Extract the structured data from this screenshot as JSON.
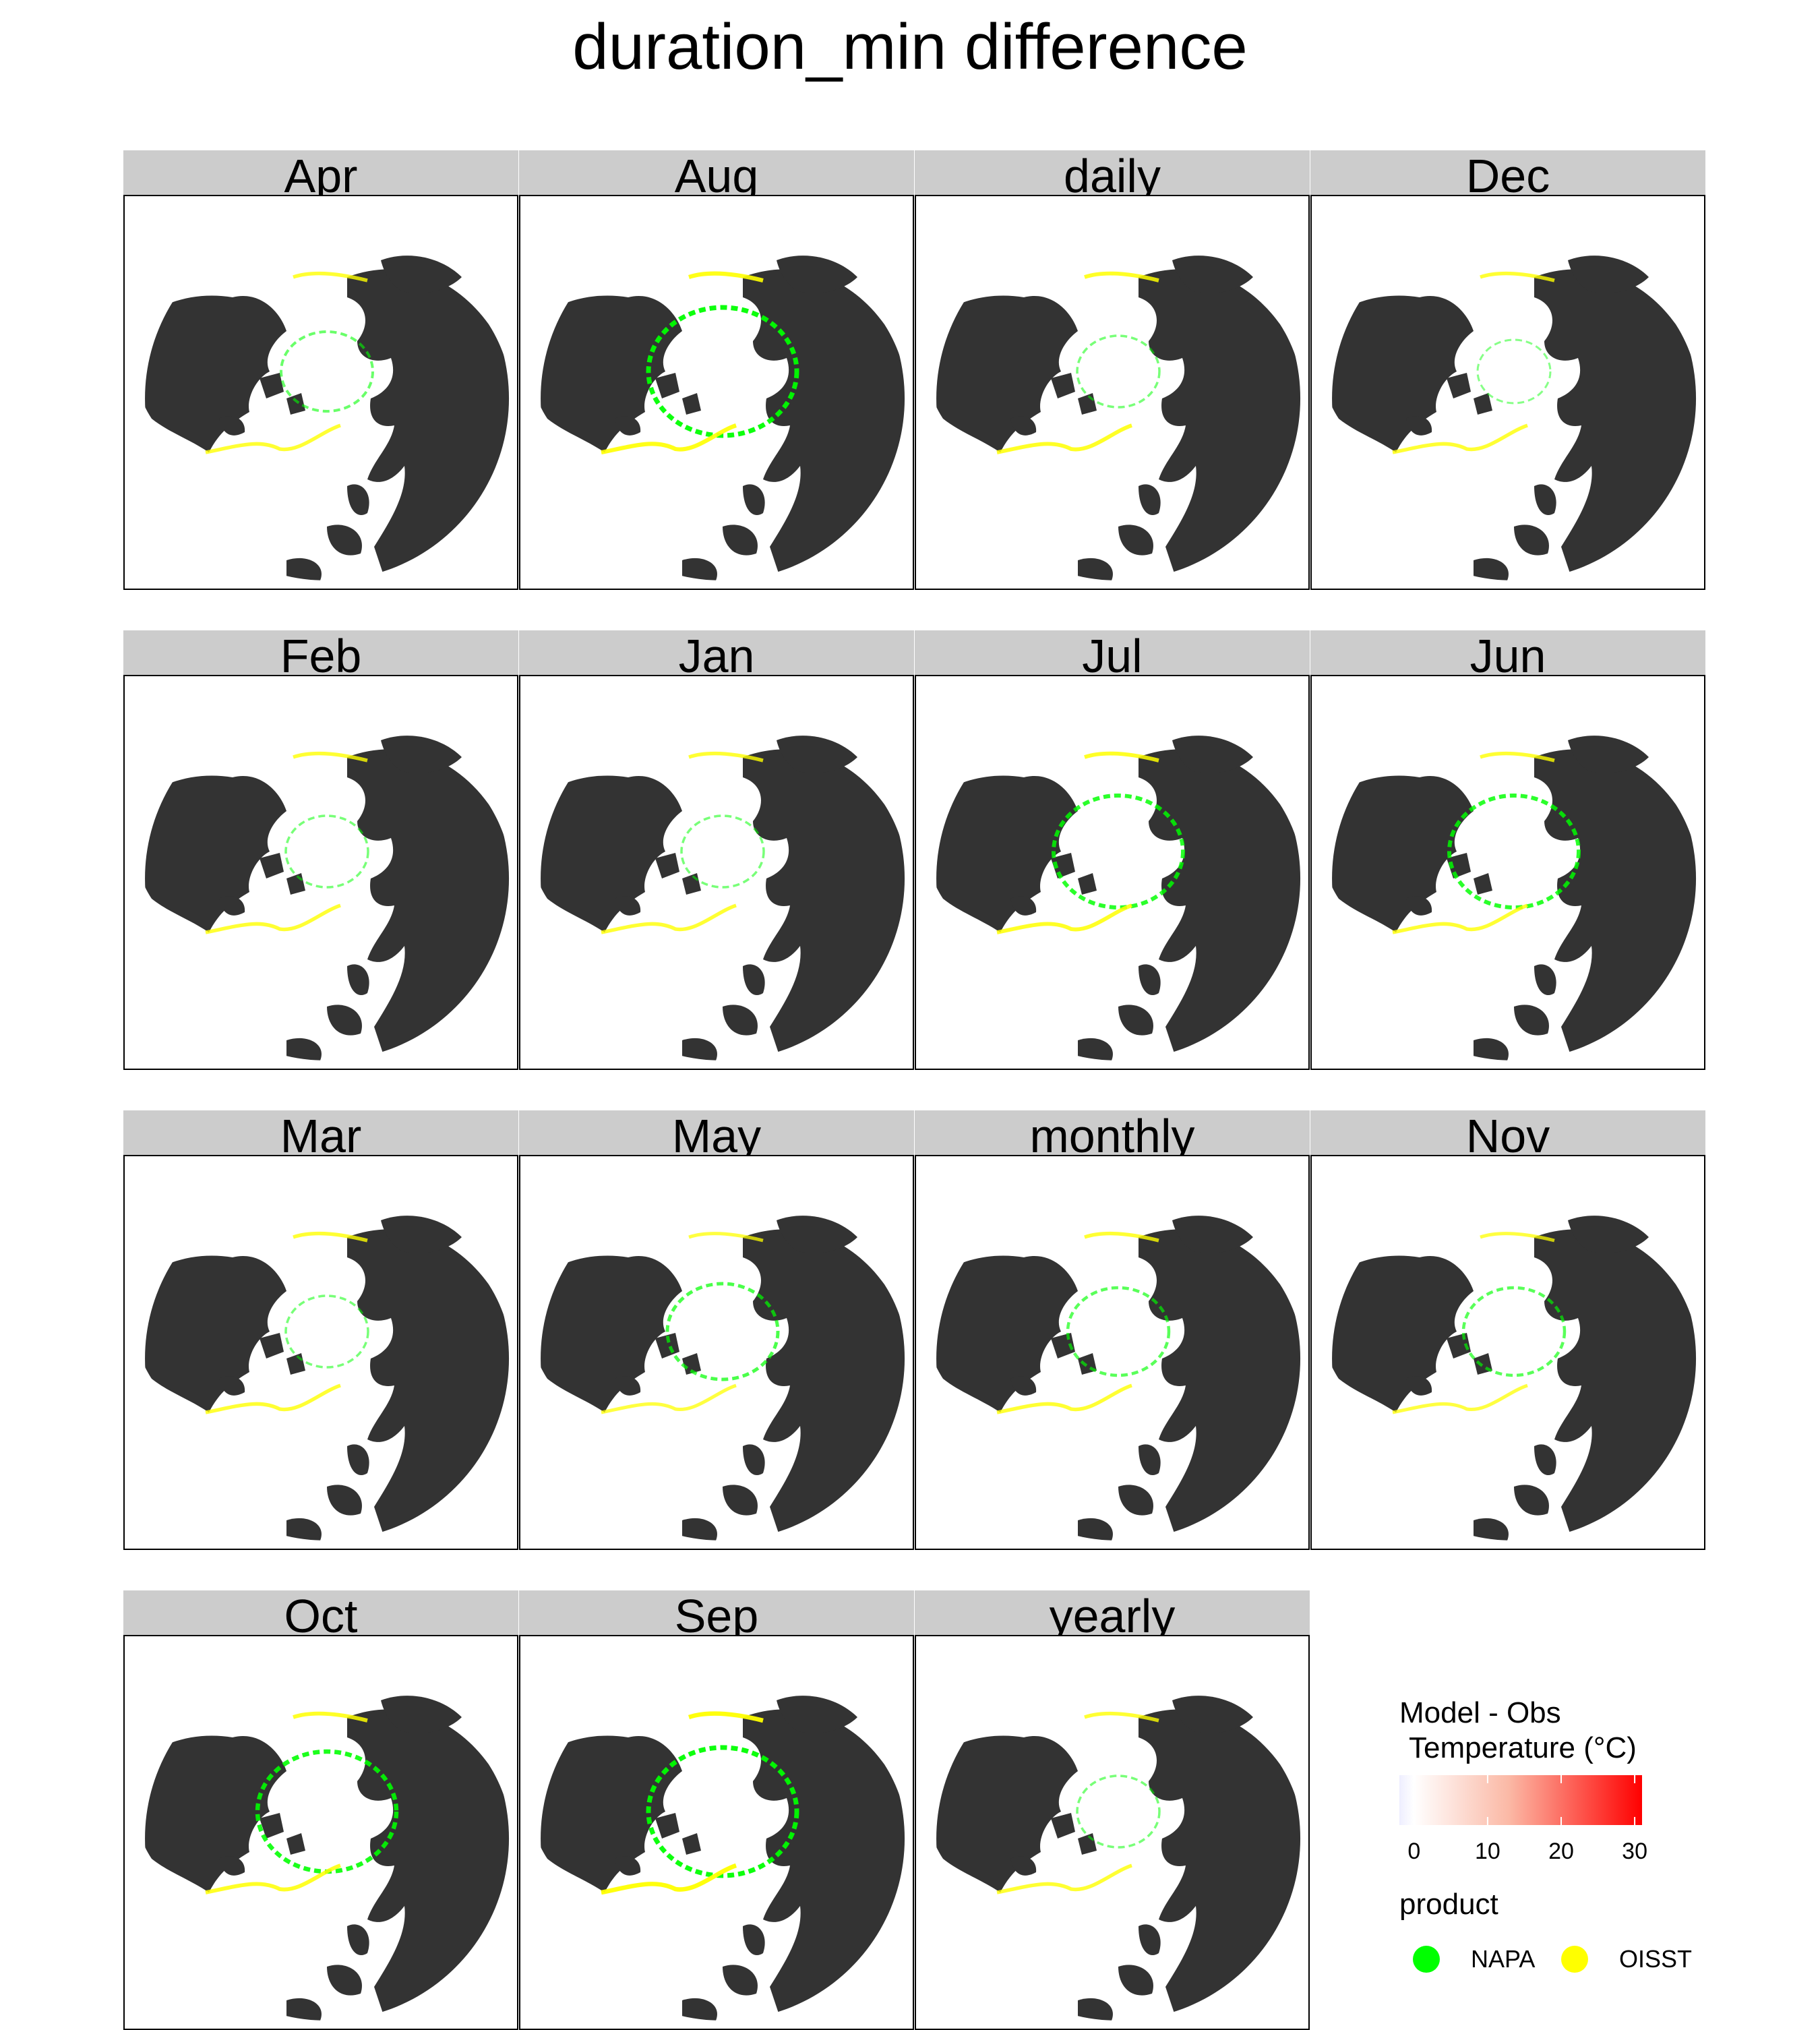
{
  "title": "duration_min difference",
  "panels": [
    {
      "label": "Apr",
      "napa": 0.4,
      "oisst": 0.6
    },
    {
      "label": "Aug",
      "napa": 1.0,
      "oisst": 0.8
    },
    {
      "label": "daily",
      "napa": 0.3,
      "oisst": 0.7
    },
    {
      "label": "Dec",
      "napa": 0.2,
      "oisst": 0.6
    },
    {
      "label": "Feb",
      "napa": 0.3,
      "oisst": 0.6
    },
    {
      "label": "Jan",
      "napa": 0.3,
      "oisst": 0.6
    },
    {
      "label": "Jul",
      "napa": 0.8,
      "oisst": 0.7
    },
    {
      "label": "Jun",
      "napa": 0.8,
      "oisst": 0.6
    },
    {
      "label": "Mar",
      "napa": 0.3,
      "oisst": 0.6
    },
    {
      "label": "May",
      "napa": 0.6,
      "oisst": 0.5
    },
    {
      "label": "monthly",
      "napa": 0.5,
      "oisst": 0.6
    },
    {
      "label": "Nov",
      "napa": 0.5,
      "oisst": 0.5
    },
    {
      "label": "Oct",
      "napa": 0.9,
      "oisst": 0.7
    },
    {
      "label": "Sep",
      "napa": 1.0,
      "oisst": 0.9
    },
    {
      "label": "yearly",
      "napa": 0.3,
      "oisst": 0.6
    }
  ],
  "legend": {
    "title_line1": "Model - Obs",
    "title_line2": "Temperature (°C)",
    "colorbar_ticks": [
      "0",
      "10",
      "20",
      "30"
    ],
    "colorbar_min": -2,
    "colorbar_max": 31,
    "product_title": "product",
    "products": [
      {
        "name": "NAPA",
        "color": "#00ff00"
      },
      {
        "name": "OISST",
        "color": "#ffff00"
      }
    ]
  },
  "colors": {
    "land": "#333333",
    "ocean": "#ffffff",
    "strip": "#cccccc",
    "napa": "#00ff00",
    "oisst": "#ffff00",
    "scale_low": "#f0f0ff",
    "scale_high": "#ff0000"
  }
}
